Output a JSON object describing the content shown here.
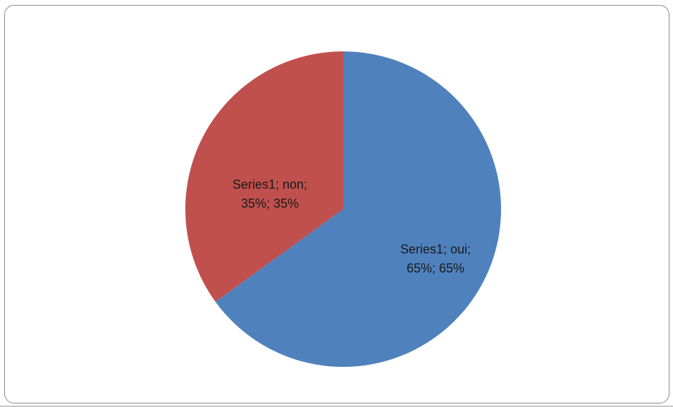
{
  "chart_data": {
    "type": "pie",
    "title": "",
    "series": [
      {
        "name": "Series1",
        "slices": [
          {
            "label": "oui",
            "value": 65,
            "color": "#4f81bd",
            "data_label": [
              "Series1; oui;",
              "65%; 65%"
            ]
          },
          {
            "label": "non",
            "value": 35,
            "color": "#c0504d",
            "data_label": [
              "Series1; non;",
              "35%; 35%"
            ]
          }
        ]
      }
    ],
    "start_angle": "12 o'clock",
    "direction": "clockwise",
    "legend": "none"
  }
}
